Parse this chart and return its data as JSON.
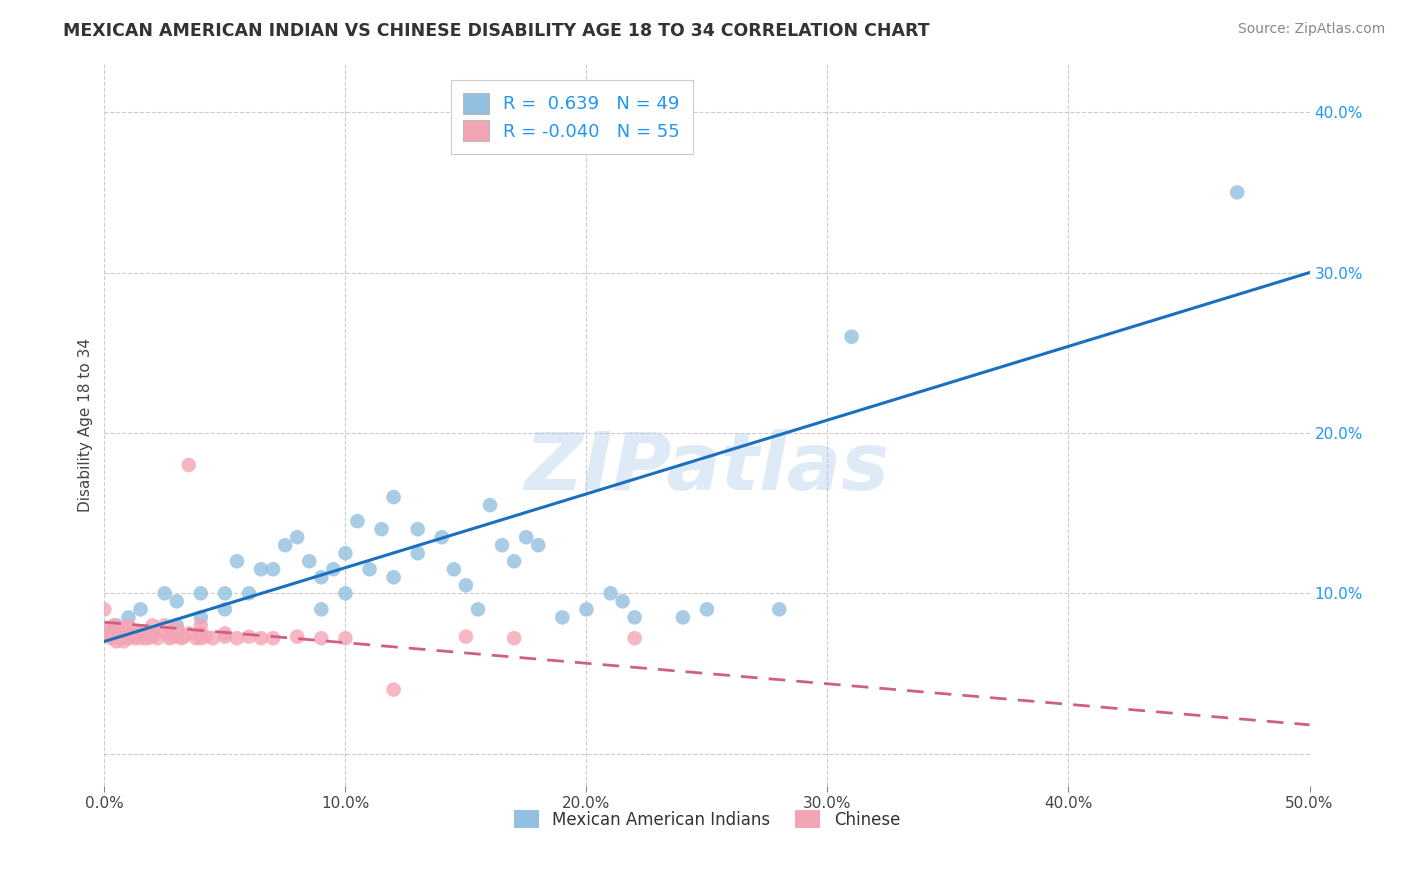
{
  "title": "MEXICAN AMERICAN INDIAN VS CHINESE DISABILITY AGE 18 TO 34 CORRELATION CHART",
  "source": "Source: ZipAtlas.com",
  "ylabel": "Disability Age 18 to 34",
  "xlim": [
    0.0,
    0.5
  ],
  "ylim": [
    -0.02,
    0.43
  ],
  "xticks": [
    0.0,
    0.1,
    0.2,
    0.3,
    0.4,
    0.5
  ],
  "xticklabels": [
    "0.0%",
    "10.0%",
    "20.0%",
    "30.0%",
    "40.0%",
    "50.0%"
  ],
  "yticks_right": [
    0.0,
    0.1,
    0.2,
    0.3,
    0.4
  ],
  "yticklabels_right": [
    "",
    "10.0%",
    "20.0%",
    "30.0%",
    "40.0%"
  ],
  "grid_color": "#cccccc",
  "background_color": "#ffffff",
  "watermark_text": "ZIPatlas",
  "r1": 0.639,
  "n1": 49,
  "r2": -0.04,
  "n2": 55,
  "color_blue": "#92c0e0",
  "color_pink": "#f4a5b5",
  "line_blue": "#1a6fbe",
  "line_pink": "#d06080",
  "legend_label1": "Mexican American Indians",
  "legend_label2": "Chinese",
  "blue_trend_x0": 0.0,
  "blue_trend_y0": 0.07,
  "blue_trend_x1": 0.5,
  "blue_trend_y1": 0.3,
  "pink_trend_x0": 0.0,
  "pink_trend_y0": 0.082,
  "pink_trend_x1": 0.5,
  "pink_trend_y1": 0.018,
  "blue_scatter_x": [
    0.005,
    0.01,
    0.015,
    0.02,
    0.025,
    0.03,
    0.03,
    0.04,
    0.04,
    0.05,
    0.05,
    0.055,
    0.06,
    0.065,
    0.07,
    0.075,
    0.08,
    0.085,
    0.09,
    0.09,
    0.095,
    0.1,
    0.1,
    0.105,
    0.11,
    0.115,
    0.12,
    0.12,
    0.13,
    0.13,
    0.14,
    0.145,
    0.15,
    0.155,
    0.16,
    0.165,
    0.17,
    0.175,
    0.18,
    0.19,
    0.2,
    0.21,
    0.215,
    0.22,
    0.24,
    0.25,
    0.28,
    0.31,
    0.47
  ],
  "blue_scatter_y": [
    0.08,
    0.085,
    0.09,
    0.075,
    0.1,
    0.095,
    0.08,
    0.085,
    0.1,
    0.09,
    0.1,
    0.12,
    0.1,
    0.115,
    0.115,
    0.13,
    0.135,
    0.12,
    0.09,
    0.11,
    0.115,
    0.1,
    0.125,
    0.145,
    0.115,
    0.14,
    0.16,
    0.11,
    0.125,
    0.14,
    0.135,
    0.115,
    0.105,
    0.09,
    0.155,
    0.13,
    0.12,
    0.135,
    0.13,
    0.085,
    0.09,
    0.1,
    0.095,
    0.085,
    0.085,
    0.09,
    0.09,
    0.26,
    0.35
  ],
  "pink_scatter_x": [
    0.0,
    0.0,
    0.002,
    0.003,
    0.004,
    0.005,
    0.005,
    0.007,
    0.008,
    0.008,
    0.009,
    0.01,
    0.01,
    0.01,
    0.012,
    0.013,
    0.013,
    0.015,
    0.015,
    0.016,
    0.018,
    0.018,
    0.02,
    0.02,
    0.02,
    0.022,
    0.025,
    0.025,
    0.027,
    0.028,
    0.03,
    0.03,
    0.032,
    0.033,
    0.035,
    0.035,
    0.038,
    0.04,
    0.04,
    0.04,
    0.042,
    0.045,
    0.05,
    0.05,
    0.055,
    0.06,
    0.065,
    0.07,
    0.08,
    0.09,
    0.1,
    0.12,
    0.15,
    0.17,
    0.22
  ],
  "pink_scatter_y": [
    0.075,
    0.09,
    0.078,
    0.072,
    0.08,
    0.07,
    0.075,
    0.072,
    0.078,
    0.07,
    0.074,
    0.075,
    0.072,
    0.08,
    0.073,
    0.076,
    0.072,
    0.075,
    0.073,
    0.072,
    0.075,
    0.072,
    0.08,
    0.073,
    0.075,
    0.072,
    0.08,
    0.075,
    0.072,
    0.073,
    0.073,
    0.078,
    0.072,
    0.073,
    0.075,
    0.18,
    0.072,
    0.075,
    0.072,
    0.08,
    0.073,
    0.072,
    0.073,
    0.075,
    0.072,
    0.073,
    0.072,
    0.072,
    0.073,
    0.072,
    0.072,
    0.04,
    0.073,
    0.072,
    0.072
  ]
}
